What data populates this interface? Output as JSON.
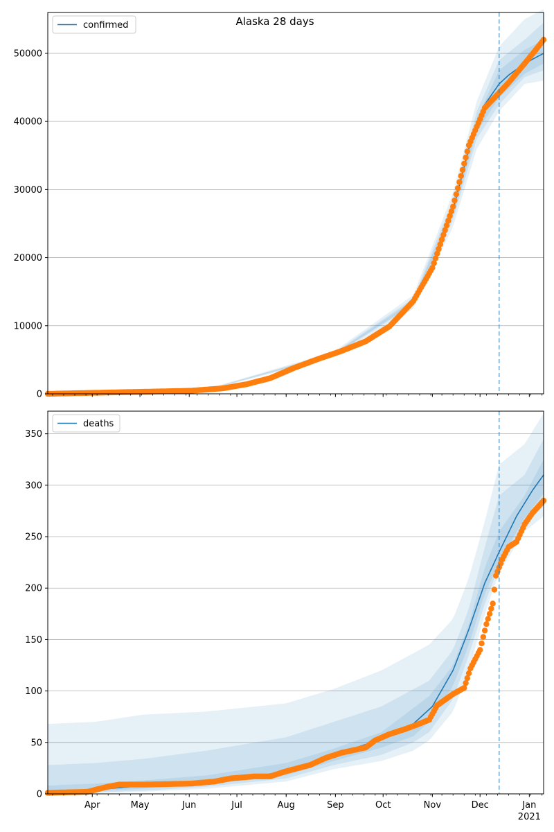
{
  "figure": {
    "title": "Alaska 28 days"
  },
  "colors": {
    "model": "#1f77b4",
    "observed": "#ff7f0e",
    "band": "#1f77b4",
    "grid": "#b0b0b0",
    "vline": "#1f77b4"
  },
  "chart_data": [
    {
      "type": "line",
      "legend": {
        "label": "confirmed",
        "position": "upper-left"
      },
      "x_axis": {
        "range_days": [
          0,
          312
        ],
        "ticks": [
          {
            "day": 28,
            "label": "Apr"
          },
          {
            "day": 58,
            "label": "May"
          },
          {
            "day": 89,
            "label": "Jun"
          },
          {
            "day": 119,
            "label": "Jul"
          },
          {
            "day": 150,
            "label": "Aug"
          },
          {
            "day": 181,
            "label": "Sep"
          },
          {
            "day": 211,
            "label": "Oct"
          },
          {
            "day": 242,
            "label": "Nov"
          },
          {
            "day": 272,
            "label": "Dec"
          },
          {
            "day": 303,
            "label": "Jan",
            "sublabel": "2021"
          }
        ]
      },
      "ylim": [
        0,
        56000
      ],
      "yticks": [
        0,
        10000,
        20000,
        30000,
        40000,
        50000
      ],
      "grid": "y",
      "forecast_day": 284,
      "model_fit": [
        [
          0,
          0
        ],
        [
          30,
          150
        ],
        [
          60,
          300
        ],
        [
          90,
          450
        ],
        [
          110,
          800
        ],
        [
          125,
          1300
        ],
        [
          140,
          2200
        ],
        [
          155,
          3700
        ],
        [
          170,
          5000
        ],
        [
          185,
          6200
        ],
        [
          200,
          7600
        ],
        [
          215,
          9800
        ],
        [
          230,
          13500
        ],
        [
          242,
          18000
        ],
        [
          255,
          27000
        ],
        [
          265,
          36000
        ],
        [
          275,
          42500
        ],
        [
          284,
          45500
        ],
        [
          290,
          46800
        ],
        [
          300,
          48500
        ],
        [
          312,
          50000
        ]
      ],
      "observed": [
        [
          0,
          0
        ],
        [
          30,
          150
        ],
        [
          60,
          300
        ],
        [
          90,
          450
        ],
        [
          110,
          800
        ],
        [
          125,
          1400
        ],
        [
          140,
          2300
        ],
        [
          155,
          3800
        ],
        [
          170,
          5100
        ],
        [
          185,
          6300
        ],
        [
          200,
          7700
        ],
        [
          215,
          9900
        ],
        [
          230,
          13600
        ],
        [
          242,
          18500
        ],
        [
          255,
          27500
        ],
        [
          265,
          36500
        ],
        [
          275,
          42000
        ],
        [
          284,
          44200
        ],
        [
          290,
          45700
        ],
        [
          300,
          48500
        ],
        [
          306,
          50200
        ],
        [
          312,
          52000
        ]
      ],
      "bands": [
        {
          "upper": [
            [
              0,
              0
            ],
            [
              100,
              700
            ],
            [
              180,
              6200
            ],
            [
              230,
              14500
            ],
            [
              255,
              29500
            ],
            [
              270,
              43000
            ],
            [
              284,
              51000
            ],
            [
              300,
              55000
            ],
            [
              312,
              56500
            ]
          ],
          "lower": [
            [
              0,
              0
            ],
            [
              100,
              500
            ],
            [
              180,
              5400
            ],
            [
              230,
              12500
            ],
            [
              255,
              24500
            ],
            [
              270,
              36000
            ],
            [
              284,
              41500
            ],
            [
              300,
              45500
            ],
            [
              312,
              46000
            ]
          ]
        },
        {
          "upper": [
            [
              0,
              0
            ],
            [
              100,
              650
            ],
            [
              180,
              6000
            ],
            [
              230,
              14000
            ],
            [
              255,
              28500
            ],
            [
              270,
              41500
            ],
            [
              284,
              49000
            ],
            [
              300,
              52000
            ],
            [
              312,
              54500
            ]
          ],
          "lower": [
            [
              0,
              0
            ],
            [
              100,
              550
            ],
            [
              180,
              5600
            ],
            [
              230,
              13000
            ],
            [
              255,
              25500
            ],
            [
              270,
              37500
            ],
            [
              284,
              42500
            ],
            [
              300,
              46500
            ],
            [
              312,
              47500
            ]
          ]
        },
        {
          "upper": [
            [
              0,
              0
            ],
            [
              100,
              620
            ],
            [
              180,
              5900
            ],
            [
              230,
              13700
            ],
            [
              255,
              27800
            ],
            [
              270,
              40500
            ],
            [
              284,
              47500
            ],
            [
              300,
              50500
            ],
            [
              312,
              52000
            ]
          ],
          "lower": [
            [
              0,
              0
            ],
            [
              100,
              580
            ],
            [
              180,
              5700
            ],
            [
              230,
              13200
            ],
            [
              255,
              26200
            ],
            [
              270,
              38500
            ],
            [
              284,
              43500
            ],
            [
              300,
              47000
            ],
            [
              312,
              48500
            ]
          ]
        }
      ]
    },
    {
      "type": "line",
      "legend": {
        "label": "deaths",
        "position": "upper-left"
      },
      "x_axis": {
        "range_days": [
          0,
          312
        ],
        "ticks": [
          {
            "day": 28,
            "label": "Apr"
          },
          {
            "day": 58,
            "label": "May"
          },
          {
            "day": 89,
            "label": "Jun"
          },
          {
            "day": 119,
            "label": "Jul"
          },
          {
            "day": 150,
            "label": "Aug"
          },
          {
            "day": 181,
            "label": "Sep"
          },
          {
            "day": 211,
            "label": "Oct"
          },
          {
            "day": 242,
            "label": "Nov"
          },
          {
            "day": 272,
            "label": "Dec"
          },
          {
            "day": 303,
            "label": "Jan",
            "sublabel": "2021"
          }
        ]
      },
      "ylim": [
        0,
        372
      ],
      "yticks": [
        0,
        50,
        100,
        150,
        200,
        250,
        300,
        350
      ],
      "grid": "y",
      "forecast_day": 284,
      "model_fit": [
        [
          0,
          2
        ],
        [
          30,
          4
        ],
        [
          60,
          8
        ],
        [
          90,
          11
        ],
        [
          120,
          14
        ],
        [
          150,
          22
        ],
        [
          180,
          38
        ],
        [
          200,
          48
        ],
        [
          215,
          57
        ],
        [
          230,
          68
        ],
        [
          242,
          85
        ],
        [
          255,
          120
        ],
        [
          265,
          160
        ],
        [
          275,
          205
        ],
        [
          284,
          235
        ],
        [
          295,
          270
        ],
        [
          305,
          295
        ],
        [
          312,
          310
        ]
      ],
      "observed": [
        [
          0,
          1
        ],
        [
          25,
          2
        ],
        [
          30,
          4
        ],
        [
          38,
          7
        ],
        [
          45,
          9
        ],
        [
          60,
          9
        ],
        [
          90,
          10
        ],
        [
          105,
          12
        ],
        [
          115,
          15
        ],
        [
          130,
          17
        ],
        [
          140,
          17
        ],
        [
          150,
          22
        ],
        [
          165,
          28
        ],
        [
          175,
          35
        ],
        [
          185,
          40
        ],
        [
          200,
          45
        ],
        [
          206,
          52
        ],
        [
          215,
          58
        ],
        [
          225,
          63
        ],
        [
          232,
          67
        ],
        [
          240,
          72
        ],
        [
          245,
          86
        ],
        [
          255,
          97
        ],
        [
          262,
          103
        ],
        [
          266,
          122
        ],
        [
          272,
          140
        ],
        [
          276,
          165
        ],
        [
          280,
          185
        ],
        [
          282,
          212
        ],
        [
          286,
          228
        ],
        [
          290,
          240
        ],
        [
          295,
          245
        ],
        [
          300,
          262
        ],
        [
          305,
          273
        ],
        [
          312,
          285
        ]
      ],
      "bands": [
        {
          "upper": [
            [
              0,
              68
            ],
            [
              30,
              70
            ],
            [
              60,
              77
            ],
            [
              100,
              80
            ],
            [
              150,
              88
            ],
            [
              180,
              102
            ],
            [
              210,
              120
            ],
            [
              240,
              145
            ],
            [
              255,
              170
            ],
            [
              265,
              210
            ],
            [
              275,
              265
            ],
            [
              284,
              320
            ],
            [
              300,
              340
            ],
            [
              312,
              370
            ]
          ],
          "lower": [
            [
              0,
              0
            ],
            [
              60,
              2
            ],
            [
              100,
              5
            ],
            [
              150,
              12
            ],
            [
              180,
              24
            ],
            [
              210,
              32
            ],
            [
              230,
              42
            ],
            [
              240,
              52
            ],
            [
              255,
              80
            ],
            [
              265,
              120
            ],
            [
              275,
              175
            ],
            [
              284,
              215
            ],
            [
              300,
              255
            ],
            [
              312,
              270
            ]
          ]
        },
        {
          "upper": [
            [
              0,
              28
            ],
            [
              30,
              30
            ],
            [
              60,
              34
            ],
            [
              100,
              42
            ],
            [
              150,
              55
            ],
            [
              180,
              70
            ],
            [
              210,
              85
            ],
            [
              240,
              110
            ],
            [
              255,
              140
            ],
            [
              265,
              180
            ],
            [
              275,
              240
            ],
            [
              284,
              290
            ],
            [
              300,
              310
            ],
            [
              312,
              345
            ]
          ],
          "lower": [
            [
              0,
              0
            ],
            [
              60,
              3
            ],
            [
              100,
              7
            ],
            [
              150,
              15
            ],
            [
              180,
              28
            ],
            [
              210,
              38
            ],
            [
              230,
              50
            ],
            [
              240,
              60
            ],
            [
              255,
              92
            ],
            [
              265,
              135
            ],
            [
              275,
              185
            ],
            [
              284,
              222
            ],
            [
              300,
              262
            ],
            [
              312,
              280
            ]
          ]
        },
        {
          "upper": [
            [
              0,
              8
            ],
            [
              30,
              10
            ],
            [
              60,
              13
            ],
            [
              100,
              18
            ],
            [
              150,
              30
            ],
            [
              180,
              44
            ],
            [
              210,
              60
            ],
            [
              240,
              95
            ],
            [
              255,
              125
            ],
            [
              265,
              165
            ],
            [
              275,
              220
            ],
            [
              284,
              255
            ],
            [
              300,
              290
            ],
            [
              312,
              325
            ]
          ],
          "lower": [
            [
              0,
              0
            ],
            [
              60,
              5
            ],
            [
              100,
              9
            ],
            [
              150,
              18
            ],
            [
              180,
              32
            ],
            [
              210,
              45
            ],
            [
              230,
              56
            ],
            [
              240,
              70
            ],
            [
              255,
              105
            ],
            [
              265,
              145
            ],
            [
              275,
              195
            ],
            [
              284,
              225
            ],
            [
              300,
              268
            ],
            [
              312,
              292
            ]
          ]
        }
      ]
    }
  ]
}
